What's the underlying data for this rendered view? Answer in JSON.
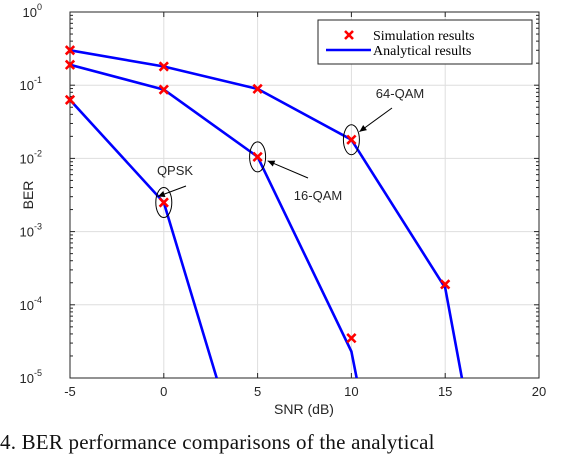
{
  "chart_data": {
    "type": "line",
    "xlabel": "SNR (dB)",
    "ylabel": "BER",
    "xlim": [
      -5,
      20
    ],
    "ylim": [
      1e-05,
      1
    ],
    "yscale": "log",
    "grid": true,
    "legend_position": "top-right",
    "x_ticks": [
      "-5",
      "0",
      "5",
      "10",
      "15",
      "20"
    ],
    "y_ticks": [
      {
        "base": "10",
        "exp": "0"
      },
      {
        "base": "10",
        "exp": "-1"
      },
      {
        "base": "10",
        "exp": "-2"
      },
      {
        "base": "10",
        "exp": "-3"
      },
      {
        "base": "10",
        "exp": "-4"
      },
      {
        "base": "10",
        "exp": "-5"
      }
    ],
    "legend": {
      "simulation_label": "Simulation results",
      "analytical_label": "Analytical results"
    },
    "series": [
      {
        "name": "QPSK",
        "analytical": [
          [
            -5,
            0.063
          ],
          [
            0,
            0.0025
          ],
          [
            3,
            7e-06
          ]
        ],
        "simulation": [
          [
            -5,
            0.063
          ],
          [
            0,
            0.0025
          ]
        ]
      },
      {
        "name": "16-QAM",
        "analytical": [
          [
            -5,
            0.19
          ],
          [
            0,
            0.087
          ],
          [
            5,
            0.0105
          ],
          [
            10,
            2.3e-05
          ],
          [
            10.4,
            7e-06
          ]
        ],
        "simulation": [
          [
            -5,
            0.19
          ],
          [
            0,
            0.087
          ],
          [
            5,
            0.0105
          ],
          [
            10,
            3.5e-05
          ]
        ]
      },
      {
        "name": "64-QAM",
        "analytical": [
          [
            -5,
            0.3
          ],
          [
            0,
            0.18
          ],
          [
            5,
            0.089
          ],
          [
            10,
            0.018
          ],
          [
            15,
            0.00017
          ],
          [
            16,
            7e-06
          ]
        ],
        "simulation": [
          [
            -5,
            0.3
          ],
          [
            0,
            0.18
          ],
          [
            5,
            0.089
          ],
          [
            10,
            0.018
          ],
          [
            15,
            0.00019
          ]
        ]
      }
    ],
    "annotations": [
      {
        "label": "QPSK",
        "at": [
          0,
          0.0025
        ]
      },
      {
        "label": "16-QAM",
        "at": [
          5,
          0.0105
        ]
      },
      {
        "label": "64-QAM",
        "at": [
          10,
          0.018
        ]
      }
    ],
    "colors": {
      "line": "#0000ff",
      "marker": "#ff0000",
      "grid": "#dedede",
      "axis": "#262626"
    }
  },
  "caption": "4.    BER performance comparisons of the analytical"
}
